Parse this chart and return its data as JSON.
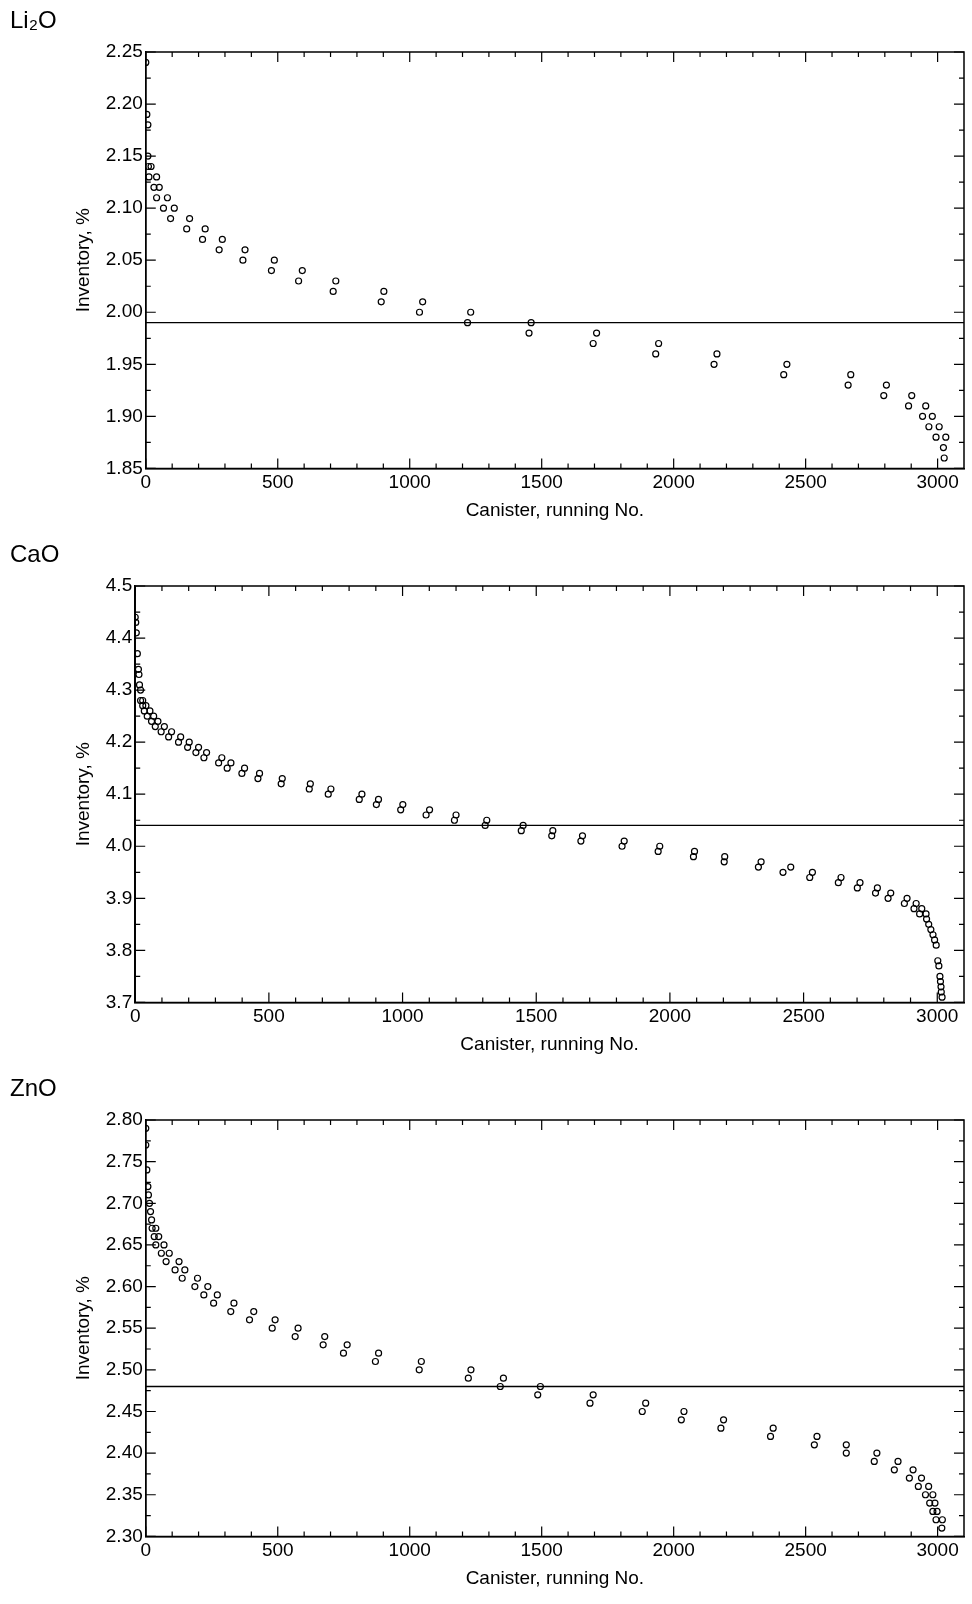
{
  "chart_data": [
    {
      "type": "scatter",
      "title": "Li₂O",
      "xlabel": "Canister, running No.",
      "ylabel": "Inventory, %",
      "marker": "circle",
      "xlim": [
        0,
        3100
      ],
      "ylim": [
        1.85,
        2.25
      ],
      "xticks": [
        0,
        {
          "value": 100,
          "label": null
        },
        {
          "value": 200,
          "label": null
        },
        {
          "value": 300,
          "label": null
        },
        {
          "value": 400,
          "label": null
        },
        500,
        {
          "value": 600,
          "label": null
        },
        {
          "value": 700,
          "label": null
        },
        {
          "value": 800,
          "label": null
        },
        {
          "value": 900,
          "label": null
        },
        1000,
        {
          "value": 1100,
          "label": null
        },
        {
          "value": 1200,
          "label": null
        },
        {
          "value": 1300,
          "label": null
        },
        {
          "value": 1400,
          "label": null
        },
        1500,
        {
          "value": 1600,
          "label": null
        },
        {
          "value": 1700,
          "label": null
        },
        {
          "value": 1800,
          "label": null
        },
        {
          "value": 1900,
          "label": null
        },
        2000,
        {
          "value": 2100,
          "label": null
        },
        {
          "value": 2200,
          "label": null
        },
        {
          "value": 2300,
          "label": null
        },
        {
          "value": 2400,
          "label": null
        },
        2500,
        {
          "value": 2600,
          "label": null
        },
        {
          "value": 2700,
          "label": null
        },
        {
          "value": 2800,
          "label": null
        },
        {
          "value": 2900,
          "label": null
        },
        3000
      ],
      "yticks": [
        1.85,
        {
          "value": 1.875,
          "label": null
        },
        {
          "value": 1.9,
          "label": "1.90"
        },
        {
          "value": 1.925,
          "label": null
        },
        1.95,
        {
          "value": 1.975,
          "label": null
        },
        {
          "value": 2.0,
          "label": "2.00"
        },
        {
          "value": 2.025,
          "label": null
        },
        2.05,
        {
          "value": 2.075,
          "label": null
        },
        {
          "value": 2.1,
          "label": "2.10"
        },
        {
          "value": 2.125,
          "label": null
        },
        2.15,
        {
          "value": 2.175,
          "label": null
        },
        {
          "value": 2.2,
          "label": "2.20"
        },
        {
          "value": 2.225,
          "label": null
        },
        2.25
      ],
      "ref_lines": [
        {
          "axis": "y",
          "value": 1.99,
          "color": "#000000"
        }
      ],
      "series": [
        {
          "color": "#000000",
          "x": [
            0,
            4,
            8,
            8,
            10,
            20,
            12,
            41,
            31,
            51,
            41,
            82,
            67,
            108,
            94,
            166,
            155,
            225,
            215,
            290,
            278,
            376,
            368,
            487,
            476,
            593,
            579,
            720,
            710,
            902,
            892,
            1049,
            1037,
            1231,
            1219,
            1460,
            1452,
            1708,
            1695,
            1943,
            1932,
            2164,
            2153,
            2429,
            2417,
            2671,
            2661,
            2806,
            2796,
            2902,
            2890,
            2955,
            2943,
            2980,
            2967,
            3006,
            2994,
            3031,
            3022,
            3025
          ],
          "values": [
            2.24,
            2.19,
            2.18,
            2.15,
            2.14,
            2.14,
            2.13,
            2.13,
            2.12,
            2.12,
            2.11,
            2.11,
            2.1,
            2.1,
            2.09,
            2.09,
            2.08,
            2.08,
            2.07,
            2.07,
            2.06,
            2.06,
            2.05,
            2.05,
            2.04,
            2.04,
            2.03,
            2.03,
            2.02,
            2.02,
            2.01,
            2.01,
            2.0,
            2.0,
            1.99,
            1.99,
            1.98,
            1.98,
            1.97,
            1.97,
            1.96,
            1.96,
            1.95,
            1.95,
            1.94,
            1.94,
            1.93,
            1.93,
            1.92,
            1.92,
            1.91,
            1.91,
            1.9,
            1.9,
            1.89,
            1.89,
            1.88,
            1.88,
            1.87,
            1.86
          ]
        }
      ]
    },
    {
      "type": "scatter",
      "title": "CaO",
      "xlabel": "Canister, running No.",
      "ylabel": "Inventory, %",
      "marker": "circle",
      "xlim": [
        0,
        3100
      ],
      "ylim": [
        3.7,
        4.5
      ],
      "xticks": [
        0,
        {
          "value": 100,
          "label": null
        },
        {
          "value": 200,
          "label": null
        },
        {
          "value": 300,
          "label": null
        },
        {
          "value": 400,
          "label": null
        },
        500,
        {
          "value": 600,
          "label": null
        },
        {
          "value": 700,
          "label": null
        },
        {
          "value": 800,
          "label": null
        },
        {
          "value": 900,
          "label": null
        },
        1000,
        {
          "value": 1100,
          "label": null
        },
        {
          "value": 1200,
          "label": null
        },
        {
          "value": 1300,
          "label": null
        },
        {
          "value": 1400,
          "label": null
        },
        1500,
        {
          "value": 1600,
          "label": null
        },
        {
          "value": 1700,
          "label": null
        },
        {
          "value": 1800,
          "label": null
        },
        {
          "value": 1900,
          "label": null
        },
        2000,
        {
          "value": 2100,
          "label": null
        },
        {
          "value": 2200,
          "label": null
        },
        {
          "value": 2300,
          "label": null
        },
        {
          "value": 2400,
          "label": null
        },
        2500,
        {
          "value": 2600,
          "label": null
        },
        {
          "value": 2700,
          "label": null
        },
        {
          "value": 2800,
          "label": null
        },
        {
          "value": 2900,
          "label": null
        },
        3000
      ],
      "yticks": [
        3.7,
        {
          "value": 3.75,
          "label": null
        },
        3.8,
        {
          "value": 3.85,
          "label": null
        },
        3.9,
        {
          "value": 3.95,
          "label": null
        },
        {
          "value": 4.0,
          "label": "4.0"
        },
        {
          "value": 4.05,
          "label": null
        },
        4.1,
        {
          "value": 4.15,
          "label": null
        },
        4.2,
        {
          "value": 4.25,
          "label": null
        },
        4.3,
        {
          "value": 4.35,
          "label": null
        },
        4.4,
        {
          "value": 4.45,
          "label": null
        },
        4.5
      ],
      "ref_lines": [
        {
          "axis": "y",
          "value": 4.04,
          "color": "#000000"
        }
      ],
      "series": [
        {
          "color": "#000000",
          "x": [
            0,
            2,
            4,
            8,
            12,
            14,
            16,
            20,
            20,
            28,
            28,
            40,
            34,
            55,
            45,
            69,
            61,
            85,
            75,
            109,
            97,
            136,
            125,
            170,
            162,
            202,
            196,
            237,
            227,
            267,
            257,
            324,
            312,
            358,
            344,
            409,
            399,
            465,
            459,
            550,
            546,
            655,
            651,
            732,
            722,
            848,
            838,
            910,
            902,
            1001,
            993,
            1101,
            1088,
            1200,
            1194,
            1315,
            1309,
            1451,
            1444,
            1562,
            1558,
            1673,
            1667,
            1829,
            1821,
            1962,
            1956,
            2092,
            2088,
            2205,
            2203,
            2341,
            2331,
            2452,
            2423,
            2533,
            2523,
            2640,
            2630,
            2711,
            2701,
            2776,
            2769,
            2826,
            2816,
            2887,
            2877,
            2921,
            2913,
            2942,
            2934,
            2958,
            2960,
            2968,
            2976,
            2984,
            2990,
            2996,
            3002,
            3006,
            3010,
            3012,
            3014,
            3015,
            3018
          ],
          "values": [
            4.44,
            4.43,
            4.41,
            4.37,
            4.34,
            4.33,
            4.31,
            4.3,
            4.28,
            4.28,
            4.27,
            4.27,
            4.26,
            4.26,
            4.25,
            4.25,
            4.24,
            4.24,
            4.23,
            4.23,
            4.22,
            4.22,
            4.21,
            4.21,
            4.2,
            4.2,
            4.19,
            4.19,
            4.18,
            4.18,
            4.17,
            4.17,
            4.16,
            4.16,
            4.15,
            4.15,
            4.14,
            4.14,
            4.13,
            4.13,
            4.12,
            4.12,
            4.11,
            4.11,
            4.1,
            4.1,
            4.09,
            4.09,
            4.08,
            4.08,
            4.07,
            4.07,
            4.06,
            4.06,
            4.05,
            4.05,
            4.04,
            4.04,
            4.03,
            4.03,
            4.02,
            4.02,
            4.01,
            4.01,
            4.0,
            4.0,
            3.99,
            3.99,
            3.98,
            3.98,
            3.97,
            3.97,
            3.96,
            3.96,
            3.95,
            3.95,
            3.94,
            3.94,
            3.93,
            3.93,
            3.92,
            3.92,
            3.91,
            3.91,
            3.9,
            3.9,
            3.89,
            3.89,
            3.88,
            3.88,
            3.87,
            3.87,
            3.86,
            3.85,
            3.84,
            3.83,
            3.82,
            3.81,
            3.78,
            3.77,
            3.75,
            3.74,
            3.73,
            3.72,
            3.71
          ]
        }
      ]
    },
    {
      "type": "scatter",
      "title": "ZnO",
      "xlabel": "Canister, running No.",
      "ylabel": "Inventory, %",
      "marker": "circle",
      "xlim": [
        0,
        3100
      ],
      "ylim": [
        2.3,
        2.8
      ],
      "xticks": [
        0,
        {
          "value": 100,
          "label": null
        },
        {
          "value": 200,
          "label": null
        },
        {
          "value": 300,
          "label": null
        },
        {
          "value": 400,
          "label": null
        },
        500,
        {
          "value": 600,
          "label": null
        },
        {
          "value": 700,
          "label": null
        },
        {
          "value": 800,
          "label": null
        },
        {
          "value": 900,
          "label": null
        },
        1000,
        {
          "value": 1100,
          "label": null
        },
        {
          "value": 1200,
          "label": null
        },
        {
          "value": 1300,
          "label": null
        },
        {
          "value": 1400,
          "label": null
        },
        1500,
        {
          "value": 1600,
          "label": null
        },
        {
          "value": 1700,
          "label": null
        },
        {
          "value": 1800,
          "label": null
        },
        {
          "value": 1900,
          "label": null
        },
        2000,
        {
          "value": 2100,
          "label": null
        },
        {
          "value": 2200,
          "label": null
        },
        {
          "value": 2300,
          "label": null
        },
        {
          "value": 2400,
          "label": null
        },
        2500,
        {
          "value": 2600,
          "label": null
        },
        {
          "value": 2700,
          "label": null
        },
        {
          "value": 2800,
          "label": null
        },
        {
          "value": 2900,
          "label": null
        },
        3000
      ],
      "yticks": [
        {
          "value": 2.3,
          "label": "2.30"
        },
        {
          "value": 2.325,
          "label": null
        },
        2.35,
        {
          "value": 2.375,
          "label": null
        },
        {
          "value": 2.4,
          "label": "2.40"
        },
        {
          "value": 2.425,
          "label": null
        },
        2.45,
        {
          "value": 2.475,
          "label": null
        },
        {
          "value": 2.5,
          "label": "2.50"
        },
        {
          "value": 2.525,
          "label": null
        },
        2.55,
        {
          "value": 2.575,
          "label": null
        },
        {
          "value": 2.6,
          "label": "2.60"
        },
        {
          "value": 2.625,
          "label": null
        },
        2.65,
        {
          "value": 2.675,
          "label": null
        },
        {
          "value": 2.7,
          "label": "2.70"
        },
        {
          "value": 2.725,
          "label": null
        },
        2.75,
        {
          "value": 2.775,
          "label": null
        },
        {
          "value": 2.8,
          "label": "2.80"
        }
      ],
      "ref_lines": [
        {
          "axis": "y",
          "value": 2.48,
          "color": "#000000"
        }
      ],
      "series": [
        {
          "color": "#000000",
          "x": [
            0,
            0,
            4,
            8,
            10,
            14,
            18,
            22,
            24,
            38,
            32,
            49,
            38,
            69,
            59,
            89,
            77,
            126,
            111,
            148,
            138,
            196,
            186,
            235,
            220,
            271,
            257,
            334,
            322,
            409,
            393,
            490,
            479,
            577,
            566,
            678,
            672,
            763,
            749,
            882,
            870,
            1044,
            1036,
            1232,
            1222,
            1355,
            1343,
            1495,
            1485,
            1695,
            1683,
            1894,
            1881,
            2039,
            2029,
            2189,
            2179,
            2377,
            2367,
            2543,
            2533,
            2654,
            2654,
            2770,
            2760,
            2850,
            2836,
            2907,
            2893,
            2939,
            2927,
            2966,
            2954,
            2982,
            2970,
            2990,
            2982,
            2998,
            2994,
            3018,
            3016
          ],
          "values": [
            2.79,
            2.77,
            2.74,
            2.72,
            2.71,
            2.7,
            2.69,
            2.68,
            2.67,
            2.67,
            2.66,
            2.66,
            2.65,
            2.65,
            2.64,
            2.64,
            2.63,
            2.63,
            2.62,
            2.62,
            2.61,
            2.61,
            2.6,
            2.6,
            2.59,
            2.59,
            2.58,
            2.58,
            2.57,
            2.57,
            2.56,
            2.56,
            2.55,
            2.55,
            2.54,
            2.54,
            2.53,
            2.53,
            2.52,
            2.52,
            2.51,
            2.51,
            2.5,
            2.5,
            2.49,
            2.49,
            2.48,
            2.48,
            2.47,
            2.47,
            2.46,
            2.46,
            2.45,
            2.45,
            2.44,
            2.44,
            2.43,
            2.43,
            2.42,
            2.42,
            2.41,
            2.41,
            2.4,
            2.4,
            2.39,
            2.39,
            2.38,
            2.38,
            2.37,
            2.37,
            2.36,
            2.36,
            2.35,
            2.35,
            2.34,
            2.34,
            2.33,
            2.33,
            2.32,
            2.32,
            2.31
          ]
        }
      ]
    }
  ]
}
